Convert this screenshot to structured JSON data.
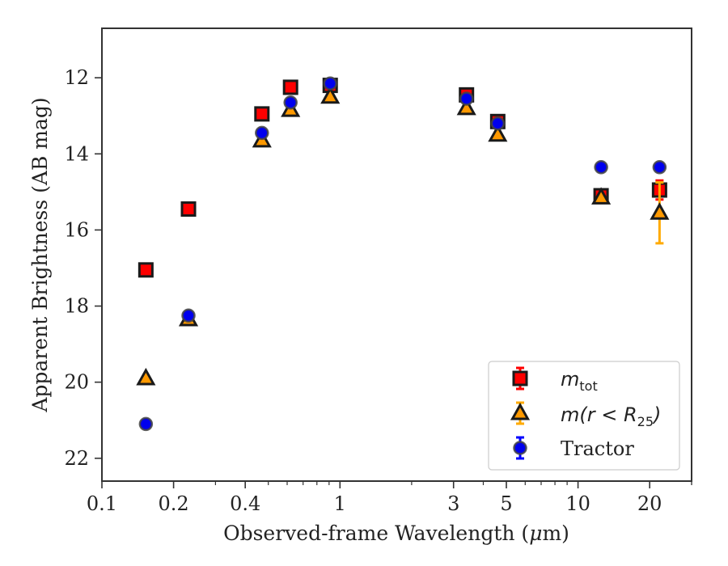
{
  "chart_data": {
    "type": "scatter",
    "title": "",
    "xlabel_pre": "Observed-frame Wavelength (",
    "xlabel_mu": "μ",
    "xlabel_post": "m)",
    "ylabel": "Apparent Brightness (AB mag)",
    "xscale": "log",
    "xlim": [
      0.1,
      30
    ],
    "ylim": [
      22.6,
      10.7
    ],
    "y_inverted": true,
    "grid": false,
    "legend_position": "lower-right",
    "x_ticks": [
      {
        "value": 0.1,
        "label": "0.1"
      },
      {
        "value": 0.2,
        "label": "0.2"
      },
      {
        "value": 0.4,
        "label": "0.4"
      },
      {
        "value": 1,
        "label": "1"
      },
      {
        "value": 3,
        "label": "3"
      },
      {
        "value": 5,
        "label": "5"
      },
      {
        "value": 10,
        "label": "10"
      },
      {
        "value": 20,
        "label": "20"
      }
    ],
    "y_ticks": [
      12,
      14,
      16,
      18,
      20,
      22
    ],
    "series": [
      {
        "name_main": "m",
        "name_sub": "tot",
        "marker": "square",
        "color": "#ff0000",
        "edge": "#1a1a1a",
        "error_color": "#ff0000",
        "points": [
          {
            "x": 0.153,
            "y": 17.05
          },
          {
            "x": 0.231,
            "y": 15.45
          },
          {
            "x": 0.47,
            "y": 12.95
          },
          {
            "x": 0.62,
            "y": 12.25
          },
          {
            "x": 0.91,
            "y": 12.2
          },
          {
            "x": 3.4,
            "y": 12.45
          },
          {
            "x": 4.6,
            "y": 13.15
          },
          {
            "x": 12.5,
            "y": 15.1
          },
          {
            "x": 22,
            "y": 14.95,
            "err": 0.25
          }
        ]
      },
      {
        "name_main": "m(r < R",
        "name_sub": "25",
        "name_tail": ")",
        "marker": "triangle",
        "color": "#ff9900",
        "edge": "#1a1a1a",
        "error_color": "#ffaa00",
        "points": [
          {
            "x": 0.153,
            "y": 19.9
          },
          {
            "x": 0.231,
            "y": 18.35
          },
          {
            "x": 0.47,
            "y": 13.65
          },
          {
            "x": 0.62,
            "y": 12.85
          },
          {
            "x": 0.91,
            "y": 12.5
          },
          {
            "x": 3.4,
            "y": 12.8
          },
          {
            "x": 4.6,
            "y": 13.5
          },
          {
            "x": 12.5,
            "y": 15.15
          },
          {
            "x": 22,
            "y": 15.55,
            "err": 0.8
          }
        ]
      },
      {
        "name": "Tractor",
        "marker": "circle",
        "color": "#0000ee",
        "edge": "#444444",
        "error_color": "#0000ff",
        "points": [
          {
            "x": 0.153,
            "y": 21.1
          },
          {
            "x": 0.231,
            "y": 18.25
          },
          {
            "x": 0.47,
            "y": 13.45
          },
          {
            "x": 0.62,
            "y": 12.65
          },
          {
            "x": 0.91,
            "y": 12.15
          },
          {
            "x": 3.4,
            "y": 12.55
          },
          {
            "x": 4.6,
            "y": 13.2
          },
          {
            "x": 12.5,
            "y": 14.35
          },
          {
            "x": 22,
            "y": 14.35
          }
        ]
      }
    ]
  }
}
